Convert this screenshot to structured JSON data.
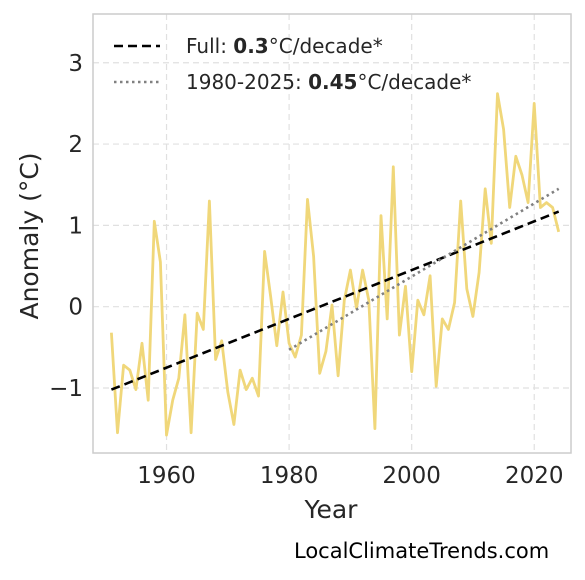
{
  "chart_data": {
    "type": "line",
    "xlabel": "Year",
    "ylabel": "Anomaly (°C)",
    "xlim": [
      1948,
      2026
    ],
    "ylim": [
      -1.8,
      3.6
    ],
    "x_ticks": [
      1960,
      1980,
      2000,
      2020
    ],
    "x_tick_labels": [
      "1960",
      "1980",
      "2000",
      "2020"
    ],
    "y_ticks": [
      -1,
      0,
      1,
      2,
      3
    ],
    "y_tick_labels": [
      "−1",
      "0",
      "1",
      "2",
      "3"
    ],
    "grid": true,
    "legend_position": "top-left",
    "series": [
      {
        "kind": "anomaly",
        "color": "#f0d77a",
        "x": [
          1951,
          1952,
          1953,
          1954,
          1955,
          1956,
          1957,
          1958,
          1959,
          1960,
          1961,
          1962,
          1963,
          1964,
          1965,
          1966,
          1967,
          1968,
          1969,
          1970,
          1971,
          1972,
          1973,
          1974,
          1975,
          1976,
          1977,
          1978,
          1979,
          1980,
          1981,
          1982,
          1983,
          1984,
          1985,
          1986,
          1987,
          1988,
          1989,
          1990,
          1991,
          1992,
          1993,
          1994,
          1995,
          1996,
          1997,
          1998,
          1999,
          2000,
          2001,
          2002,
          2003,
          2004,
          2005,
          2006,
          2007,
          2008,
          2009,
          2010,
          2011,
          2012,
          2013,
          2014,
          2015,
          2016,
          2017,
          2018,
          2019,
          2020,
          2021,
          2022,
          2023,
          2024
        ],
        "y": [
          -0.32,
          -1.55,
          -0.72,
          -0.78,
          -1.02,
          -0.45,
          -1.15,
          1.05,
          0.55,
          -1.58,
          -1.15,
          -0.88,
          -0.1,
          -1.55,
          -0.08,
          -0.28,
          1.3,
          -0.65,
          -0.42,
          -1.05,
          -1.45,
          -0.78,
          -1.02,
          -0.88,
          -1.1,
          0.68,
          0.12,
          -0.48,
          0.18,
          -0.45,
          -0.62,
          -0.35,
          1.32,
          0.62,
          -0.82,
          -0.55,
          0.02,
          -0.85,
          0.08,
          0.45,
          -0.02,
          0.45,
          0.08,
          -1.5,
          1.12,
          -0.15,
          1.72,
          -0.35,
          0.25,
          -0.8,
          0.08,
          -0.1,
          0.38,
          -0.98,
          -0.15,
          -0.28,
          0.05,
          1.3,
          0.22,
          -0.12,
          0.42,
          1.45,
          0.78,
          2.62,
          2.18,
          1.22,
          1.85,
          1.62,
          1.28,
          2.5,
          1.22,
          1.28,
          1.22,
          0.92
        ]
      },
      {
        "kind": "trend_full",
        "color": "#000000",
        "style": "dashed",
        "x": [
          1951,
          2024
        ],
        "y": [
          -1.02,
          1.17
        ]
      },
      {
        "kind": "trend_recent",
        "color": "#808080",
        "style": "dotted",
        "x": [
          1980,
          2024
        ],
        "y": [
          -0.53,
          1.45
        ]
      }
    ],
    "legend": [
      {
        "prefix": "Full: ",
        "value": "0.3",
        "suffix": "°C/decade*"
      },
      {
        "prefix": "1980-2025: ",
        "value": "0.45",
        "suffix": "°C/decade*"
      }
    ]
  },
  "watermark": "LocalClimateTrends.com"
}
